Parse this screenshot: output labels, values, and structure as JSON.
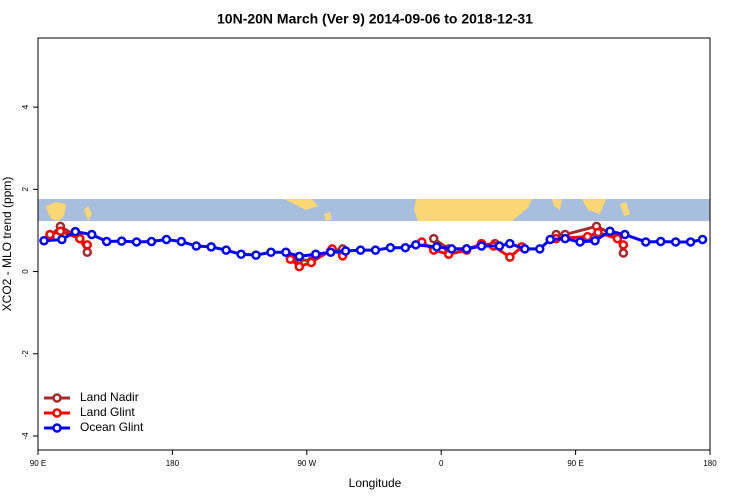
{
  "chart_data": {
    "type": "line",
    "title": "10N-20N March (Ver 9)   2014-09-06 to 2018-12-31",
    "xlabel": "Longitude",
    "ylabel": "XCO2 - MLO trend (ppm)",
    "xlim": [
      90,
      540
    ],
    "ylim": [
      -4.34,
      5.68
    ],
    "xticks": [
      {
        "value": 90,
        "label": "90 E"
      },
      180,
      {
        "value": 270,
        "label": "90 W"
      },
      {
        "value": 360,
        "label": "0"
      },
      {
        "value": 450,
        "label": "90 E"
      },
      {
        "value": 540,
        "label": "180"
      }
    ],
    "yticks": [
      -4,
      -2,
      0,
      2,
      4
    ],
    "legend": "bottom-left",
    "series": [
      {
        "name": "Land Nadir",
        "color": "#a52a2a",
        "x": [
          98,
          105,
          118,
          123,
          200,
          259,
          265,
          273,
          286,
          294,
          300,
          355,
          365,
          377,
          387,
          396,
          400,
          437,
          443,
          464,
          478,
          482
        ],
        "values": [
          0.85,
          1.1,
          0.8,
          0.47,
          null,
          0.35,
          0.3,
          0.25,
          0.5,
          0.55,
          null,
          0.8,
          0.55,
          0.55,
          0.65,
          0.68,
          null,
          0.9,
          0.9,
          1.1,
          0.85,
          0.45
        ]
      },
      {
        "name": "Land Glint",
        "color": "#ff0000",
        "x": [
          98,
          105,
          118,
          123,
          200,
          259,
          265,
          273,
          287,
          294,
          300,
          347,
          355,
          365,
          377,
          387,
          395,
          406,
          414,
          420,
          437,
          458,
          465,
          478,
          482
        ],
        "values": [
          0.9,
          0.98,
          0.8,
          0.65,
          null,
          0.3,
          0.12,
          0.22,
          0.55,
          0.38,
          null,
          0.72,
          0.52,
          0.42,
          0.52,
          0.68,
          0.62,
          0.35,
          0.6,
          null,
          0.8,
          0.85,
          0.95,
          0.8,
          0.65
        ]
      },
      {
        "name": "Ocean Glint",
        "color": "#0000ff",
        "x": [
          94,
          106,
          115,
          126,
          136,
          146,
          156,
          166,
          176,
          186,
          196,
          206,
          216,
          226,
          236,
          246,
          256,
          265,
          276,
          286,
          296,
          306,
          316,
          326,
          336,
          343,
          357,
          367,
          377,
          387,
          399,
          406,
          416,
          426,
          433,
          443,
          453,
          463,
          473,
          483,
          497,
          507,
          517,
          527,
          535
        ],
        "values": [
          0.75,
          0.78,
          0.97,
          0.9,
          0.73,
          0.74,
          0.72,
          0.73,
          0.78,
          0.73,
          0.62,
          0.6,
          0.52,
          0.42,
          0.4,
          0.47,
          0.47,
          0.37,
          0.42,
          0.47,
          0.5,
          0.52,
          0.52,
          0.58,
          0.58,
          0.65,
          0.6,
          0.55,
          0.55,
          0.62,
          0.62,
          0.68,
          0.55,
          0.55,
          0.78,
          0.8,
          0.72,
          0.75,
          0.98,
          0.9,
          0.72,
          0.73,
          0.72,
          0.72,
          0.78
        ]
      }
    ]
  }
}
